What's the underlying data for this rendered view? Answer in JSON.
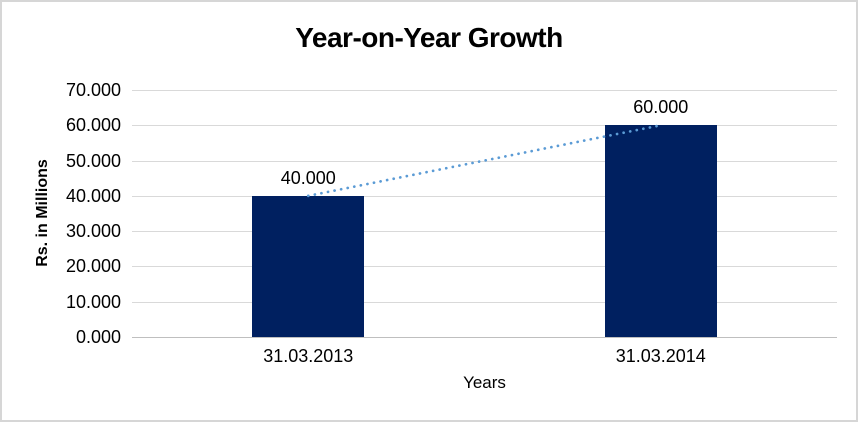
{
  "chart_data": {
    "type": "bar",
    "title": "Year-on-Year Growth",
    "xlabel": "Years",
    "ylabel": "Rs. in Millions",
    "categories": [
      "31.03.2013",
      "31.03.2014"
    ],
    "values": [
      40.0,
      60.0
    ],
    "data_labels": [
      "40.000",
      "60.000"
    ],
    "y_ticks": [
      "0.000",
      "10.000",
      "20.000",
      "30.000",
      "40.000",
      "50.000",
      "60.000",
      "70.000"
    ],
    "ylim": [
      0,
      70
    ],
    "y_step": 10,
    "grid": "horizontal-only",
    "legend": "none",
    "trendline": {
      "type": "linear",
      "style": "dotted",
      "from_point": [
        0,
        40.0
      ],
      "to_point": [
        1,
        60.0
      ]
    }
  },
  "colors": {
    "bar": "#002060",
    "trendline": "#5b9bd5",
    "gridline": "#d9d9d9",
    "axis_line": "#bfbfbf",
    "text": "#000000",
    "frame_border": "#d6d6d6",
    "background": "#ffffff"
  }
}
